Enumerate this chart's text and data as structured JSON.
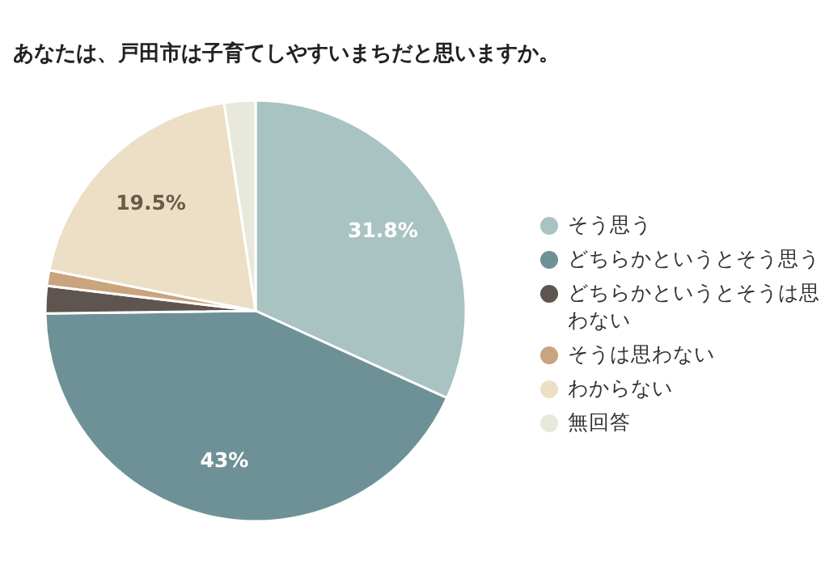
{
  "chart_data": {
    "type": "pie",
    "title": "あなたは、戸田市は子育てしやすいまちだと思いますか。",
    "categories": [
      "そう思う",
      "どちらかというとそう思う",
      "どちらかというとそうは思わない",
      "そうは思わない",
      "わからない",
      "無回答"
    ],
    "values": [
      31.8,
      43,
      2.1,
      1.2,
      19.5,
      2.4
    ],
    "value_labels": [
      "31.8%",
      "43%",
      null,
      null,
      "19.5%",
      null
    ],
    "colors": [
      "#a9c2c2",
      "#6d9196",
      "#5f5550",
      "#c9a47e",
      "#ecdfc6",
      "#e8e8dc"
    ],
    "legend": "right"
  }
}
